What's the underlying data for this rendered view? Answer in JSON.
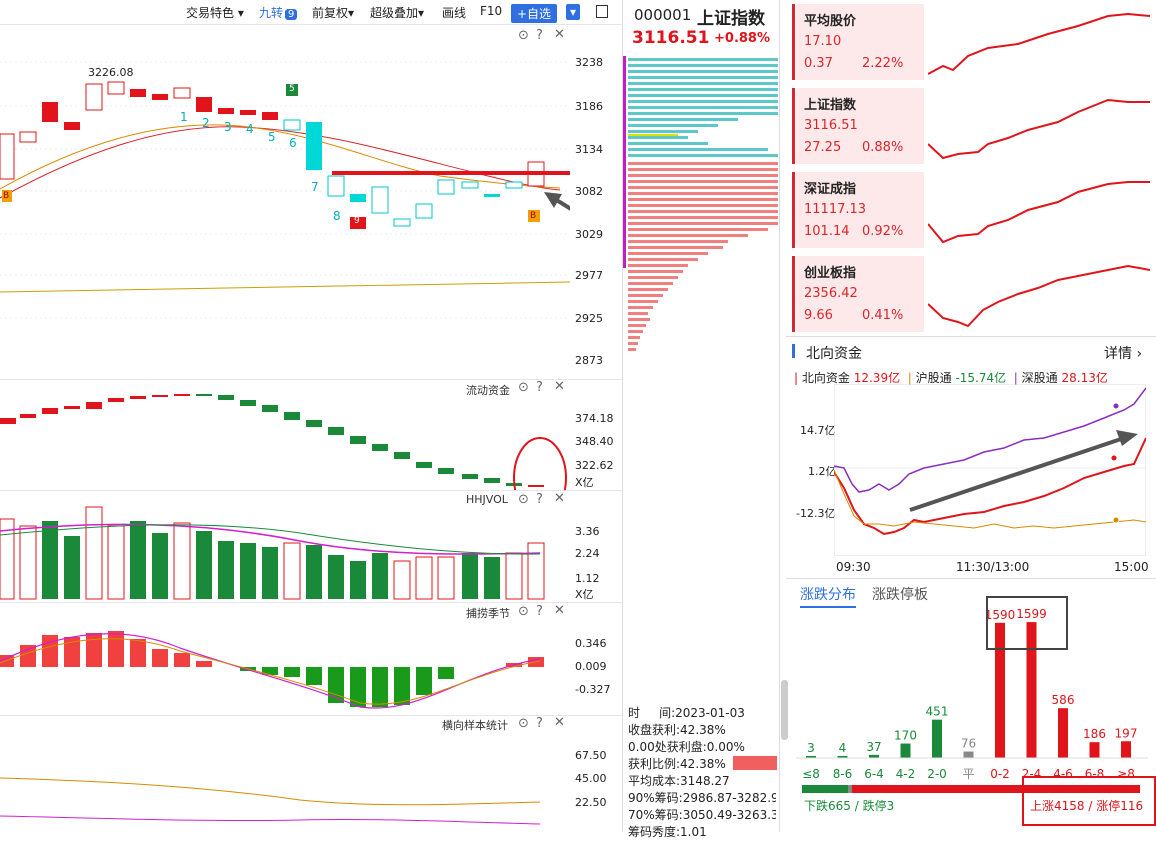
{
  "toolbar": {
    "feature": "交易特色",
    "nine": "九转",
    "nine_badge": "9",
    "fq": "前复权",
    "overlay": "超级叠加",
    "draw": "画线",
    "f10": "F10",
    "add": "+自选"
  },
  "kline": {
    "axis": [
      "3238",
      "3186",
      "3134",
      "3082",
      "3029",
      "2977",
      "2925",
      "2873"
    ],
    "high_label": "3226.08",
    "seq_up": [
      "1",
      "2",
      "3",
      "4",
      "5",
      "6",
      "7",
      "8"
    ],
    "seq_badge_top": "5",
    "seq_badge_bottom": "9",
    "b_mark": "B"
  },
  "liquidity": {
    "title": "流动资金",
    "axis": [
      "374.18",
      "348.40",
      "322.62"
    ],
    "unit": "X亿"
  },
  "hhjvol": {
    "title": "HHJVOL",
    "axis": [
      "3.36",
      "2.24",
      "1.12"
    ],
    "unit": "X亿"
  },
  "season": {
    "title": "捕捞季节",
    "axis": [
      "0.346",
      "0.009",
      "-0.327"
    ]
  },
  "sample": {
    "title": "横向样本统计",
    "axis": [
      "67.50",
      "45.00",
      "22.50"
    ]
  },
  "quote": {
    "code": "000001",
    "name": "上证指数",
    "price": "3116.51",
    "change": "+0.88%"
  },
  "chips": {
    "time_label": "时",
    "date": "间:2023-01-03",
    "l1": "收盘获利:42.38%",
    "l2": "0.00处获利盘:0.00%",
    "l3": "获利比例:42.38%",
    "l4": "平均成本:3148.27",
    "l5": "90%筹码:2986.87-3282.90-",
    "l6": "70%筹码:3050.49-3263.39-",
    "l7": "筹码秀度:1.01"
  },
  "cards": [
    {
      "name": "平均股价",
      "value": "17.10",
      "chg": "0.37",
      "pct": "2.22%"
    },
    {
      "name": "上证指数",
      "value": "3116.51",
      "chg": "27.25",
      "pct": "0.88%"
    },
    {
      "name": "深证成指",
      "value": "11117.13",
      "chg": "101.14",
      "pct": "0.92%"
    },
    {
      "name": "创业板指",
      "value": "2356.42",
      "chg": "9.66",
      "pct": "0.41%"
    }
  ],
  "north": {
    "title": "北向资金",
    "detail": "详情",
    "l1": "北向资金",
    "v1": "12.39亿",
    "l2": "沪股通",
    "v2": "-15.74亿",
    "l3": "深股通",
    "v3": "28.13亿",
    "y": [
      "14.7亿",
      "1.2亿",
      "-12.3亿"
    ],
    "x": [
      "09:30",
      "11:30/13:00",
      "15:00"
    ]
  },
  "dist": {
    "tab1": "涨跌分布",
    "tab2": "涨跌停板",
    "buckets": [
      {
        "label": "≤8",
        "value": 3,
        "color": "#1a8a3a"
      },
      {
        "label": "8-6",
        "value": 4,
        "color": "#1a8a3a"
      },
      {
        "label": "6-4",
        "value": 37,
        "color": "#1a8a3a"
      },
      {
        "label": "4-2",
        "value": 170,
        "color": "#1a8a3a"
      },
      {
        "label": "2-0",
        "value": 451,
        "color": "#1a8a3a"
      },
      {
        "label": "平",
        "value": 76,
        "color": "#888888"
      },
      {
        "label": "0-2",
        "value": 1590,
        "color": "#e0141a"
      },
      {
        "label": "2-4",
        "value": 1599,
        "color": "#e0141a"
      },
      {
        "label": "4-6",
        "value": 586,
        "color": "#e0141a"
      },
      {
        "label": "6-8",
        "value": 186,
        "color": "#e0141a"
      },
      {
        "label": "≥8",
        "value": 197,
        "color": "#e0141a"
      }
    ],
    "down": "下跌665 / 跌停3",
    "up": "上涨4158 / 涨停116"
  }
}
